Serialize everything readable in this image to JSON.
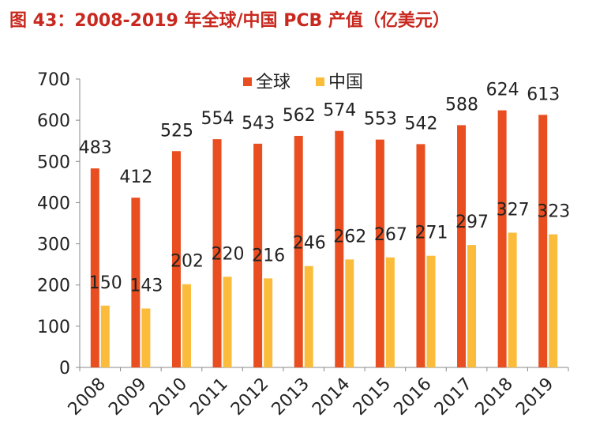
{
  "title": "图 43：2008-2019 年全球/中国 PCB 产值（亿美元）",
  "chart_data": {
    "type": "bar",
    "title": "图 43：2008-2019 年全球/中国 PCB 产值（亿美元）",
    "xlabel": "",
    "ylabel": "",
    "categories": [
      "2008",
      "2009",
      "2010",
      "2011",
      "2012",
      "2013",
      "2014",
      "2015",
      "2016",
      "2017",
      "2018",
      "2019"
    ],
    "series": [
      {
        "name": "全球",
        "color": "#e84e1f",
        "values": [
          483,
          412,
          525,
          554,
          543,
          562,
          574,
          553,
          542,
          588,
          624,
          613
        ]
      },
      {
        "name": "中国",
        "color": "#fbbc3b",
        "values": [
          150,
          143,
          202,
          220,
          216,
          246,
          262,
          267,
          271,
          297,
          327,
          323
        ]
      }
    ],
    "ylim": [
      0,
      700
    ],
    "yticks": [
      0,
      100,
      200,
      300,
      400,
      500,
      600,
      700
    ],
    "grid": false,
    "legend": "top-center",
    "data_labels": true
  }
}
